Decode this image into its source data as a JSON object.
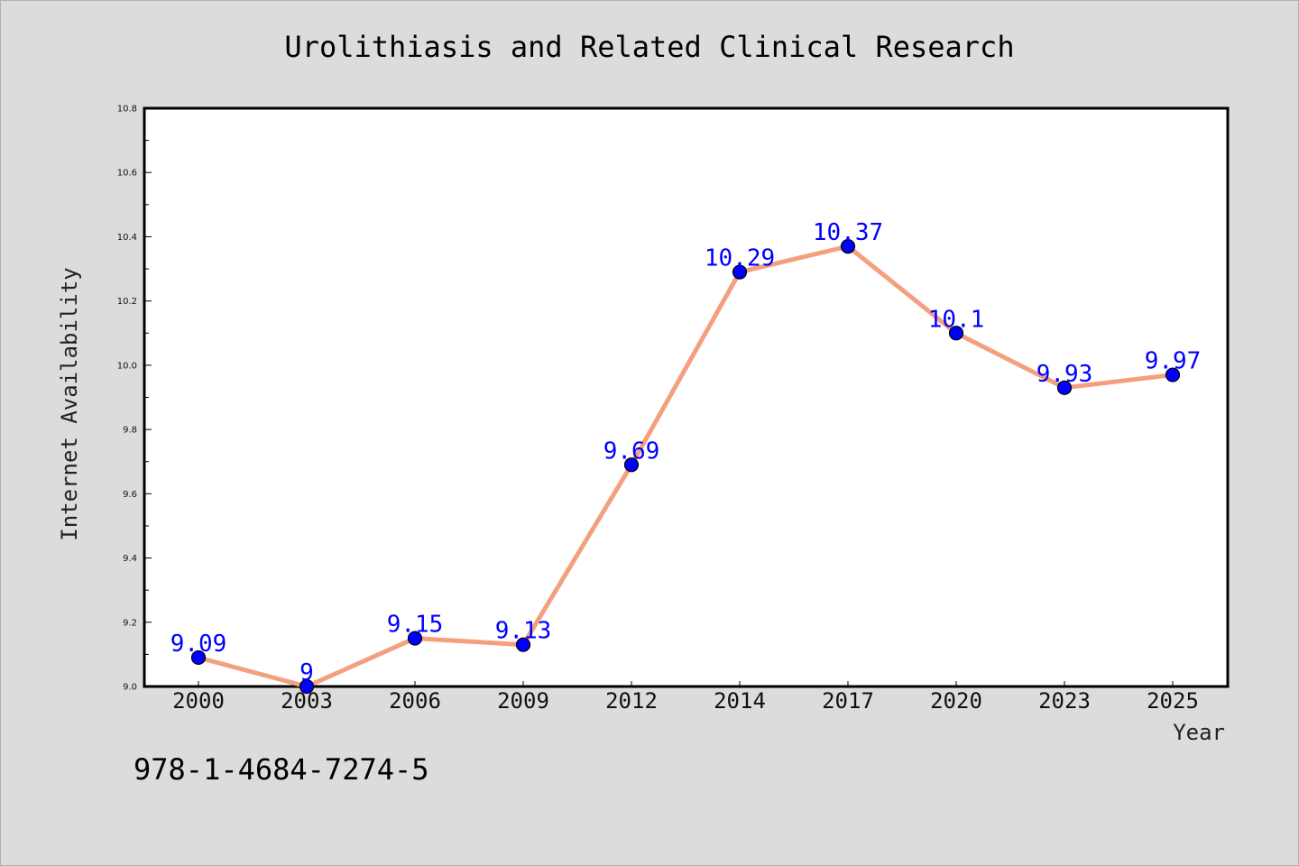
{
  "chart_data": {
    "type": "line",
    "title": "Urolithiasis and Related Clinical Research",
    "xlabel": "Year",
    "ylabel": "Internet Availability",
    "categories": [
      "2000",
      "2003",
      "2006",
      "2009",
      "2012",
      "2014",
      "2017",
      "2020",
      "2023",
      "2025"
    ],
    "series": [
      {
        "values": [
          9.09,
          9.0,
          9.15,
          9.13,
          9.69,
          10.29,
          10.37,
          10.1,
          9.93,
          9.97
        ],
        "labels": [
          "9.09",
          "9",
          "9.15",
          "9.13",
          "9.69",
          "10.29",
          "10.37",
          "10.1",
          "9.93",
          "9.97"
        ]
      }
    ],
    "ylim": [
      9.0,
      10.8
    ],
    "yticks": [
      "9.0",
      "9.2",
      "9.4",
      "9.6",
      "9.8",
      "10.0",
      "10.2",
      "10.4",
      "10.6",
      "10.8"
    ],
    "grid": false,
    "colors": {
      "line": "#f4a07e",
      "marker": "#0000ff",
      "label": "#0000ff"
    }
  },
  "footer": {
    "isbn": "978-1-4684-7274-5"
  }
}
